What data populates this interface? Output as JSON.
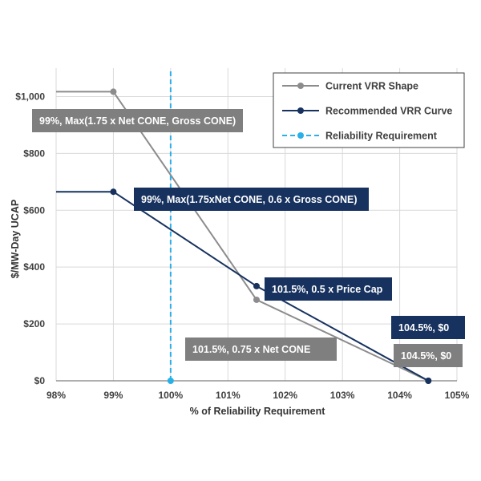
{
  "chart_data": {
    "type": "line",
    "title": "",
    "xlabel": "% of Reliability Requirement",
    "ylabel": "$/MW-Day UCAP",
    "xlim": [
      98,
      105
    ],
    "ylim": [
      0,
      1100
    ],
    "x_ticks": [
      {
        "value": 98,
        "label": "98%"
      },
      {
        "value": 99,
        "label": "99%"
      },
      {
        "value": 100,
        "label": "100%"
      },
      {
        "value": 101,
        "label": "101%"
      },
      {
        "value": 102,
        "label": "102%"
      },
      {
        "value": 103,
        "label": "103%"
      },
      {
        "value": 104,
        "label": "104%"
      },
      {
        "value": 105,
        "label": "105%"
      }
    ],
    "y_ticks": [
      {
        "value": 0,
        "label": "$0"
      },
      {
        "value": 200,
        "label": "$200"
      },
      {
        "value": 400,
        "label": "$400"
      },
      {
        "value": 600,
        "label": "$600"
      },
      {
        "value": 800,
        "label": "$800"
      },
      {
        "value": 1000,
        "label": "$1,000"
      }
    ],
    "grid": true,
    "legend_position": "top-right",
    "series": [
      {
        "name": "Current VRR Shape",
        "color": "#8c8c8c",
        "dash": "solid",
        "x": [
          98,
          99,
          101.5,
          104.5
        ],
        "y": [
          1017,
          1017,
          285,
          0
        ],
        "markers": [
          false,
          true,
          true,
          true
        ]
      },
      {
        "name": "Recommended VRR Curve",
        "color": "#17325f",
        "dash": "solid",
        "x": [
          98,
          99,
          101.5,
          104.5
        ],
        "y": [
          665,
          665,
          333,
          0
        ],
        "markers": [
          false,
          true,
          true,
          true
        ]
      },
      {
        "name": "Reliability Requirement",
        "color": "#29b0e8",
        "dash": "dashed",
        "x": [
          100,
          100
        ],
        "y": [
          0,
          1100
        ],
        "markers": [
          true,
          false
        ]
      }
    ],
    "annotations": [
      {
        "text": "99%, Max(1.75 x Net CONE, Gross CONE)",
        "color": "#7f7f7f"
      },
      {
        "text": "99%, Max(1.75xNet CONE, 0.6 x Gross CONE)",
        "color": "#17325f"
      },
      {
        "text": "101.5%, 0.5 x Price Cap",
        "color": "#17325f"
      },
      {
        "text": "101.5%, 0.75 x Net CONE",
        "color": "#7f7f7f"
      },
      {
        "text": "104.5%, $0",
        "color": "#17325f"
      },
      {
        "text": "104.5%, $0",
        "color": "#7f7f7f"
      }
    ]
  }
}
